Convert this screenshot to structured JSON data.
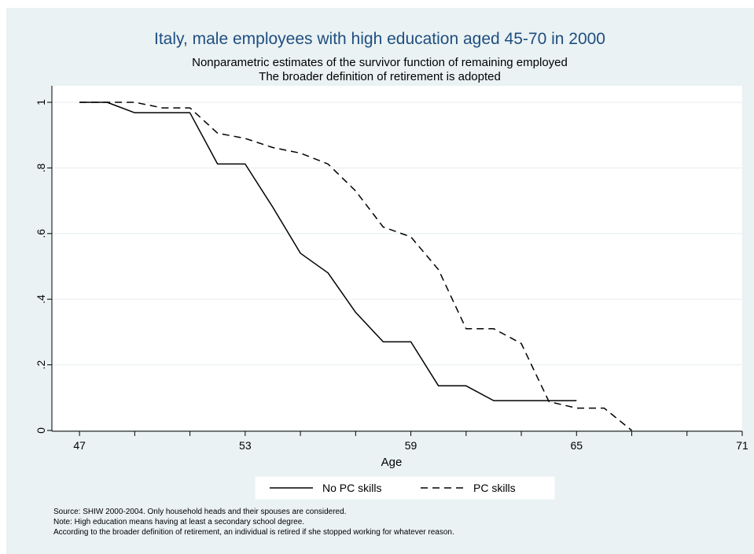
{
  "chart_data": {
    "type": "line",
    "title": "Italy, male employees with high education aged 45-70 in 2000",
    "subtitle": [
      "Nonparametric estimates of the survivor function of remaining employed",
      "The broader definition of retirement is adopted"
    ],
    "xlabel": "Age",
    "ylabel": "",
    "xlim": [
      46,
      71
    ],
    "ylim": [
      0,
      1
    ],
    "x_ticks": [
      47,
      53,
      59,
      65,
      71
    ],
    "x_minor_ticks": [
      47,
      49,
      51,
      53,
      55,
      57,
      59,
      61,
      63,
      65,
      67,
      69,
      71
    ],
    "y_ticks": [
      {
        "value": 0,
        "label": "0"
      },
      {
        "value": 0.2,
        "label": ".2"
      },
      {
        "value": 0.4,
        "label": ".4"
      },
      {
        "value": 0.6,
        "label": ".6"
      },
      {
        "value": 0.8,
        "label": ".8"
      },
      {
        "value": 1,
        "label": "1"
      }
    ],
    "grid": true,
    "legend_position": "bottom",
    "series": [
      {
        "name": "No PC skills",
        "style": "solid",
        "color": "#000000",
        "points": [
          [
            47,
            1.0
          ],
          [
            48,
            1.0
          ],
          [
            49,
            0.968
          ],
          [
            50,
            0.968
          ],
          [
            51,
            0.968
          ],
          [
            52,
            0.812
          ],
          [
            53,
            0.812
          ],
          [
            54,
            0.68
          ],
          [
            55,
            0.54
          ],
          [
            56,
            0.48
          ],
          [
            57,
            0.36
          ],
          [
            58,
            0.27
          ],
          [
            59,
            0.27
          ],
          [
            60,
            0.136
          ],
          [
            61,
            0.136
          ],
          [
            62,
            0.091
          ],
          [
            63,
            0.091
          ],
          [
            64,
            0.091
          ],
          [
            65,
            0.091
          ]
        ]
      },
      {
        "name": "PC skills",
        "style": "dashed",
        "color": "#000000",
        "points": [
          [
            47,
            1.0
          ],
          [
            48,
            1.0
          ],
          [
            49,
            1.0
          ],
          [
            50,
            0.983
          ],
          [
            51,
            0.983
          ],
          [
            52,
            0.906
          ],
          [
            53,
            0.89
          ],
          [
            54,
            0.862
          ],
          [
            55,
            0.845
          ],
          [
            56,
            0.812
          ],
          [
            57,
            0.73
          ],
          [
            58,
            0.62
          ],
          [
            59,
            0.59
          ],
          [
            60,
            0.49
          ],
          [
            61,
            0.31
          ],
          [
            62,
            0.31
          ],
          [
            63,
            0.265
          ],
          [
            64,
            0.088
          ],
          [
            65,
            0.068
          ],
          [
            66,
            0.068
          ],
          [
            67,
            0.0
          ]
        ]
      }
    ],
    "notes": [
      "Source: SHIW 2000-2004. Only household heads and their spouses are considered.",
      "Note: High education means having at least a secondary school degree.",
      "According to the broader definition of retirement, an individual is retired if she stopped working for whatever reason."
    ]
  },
  "colors": {
    "background": "#eaf2f3",
    "plot_area": "#ffffff",
    "title": "#1f4e80",
    "grid": "#e6eef0"
  }
}
